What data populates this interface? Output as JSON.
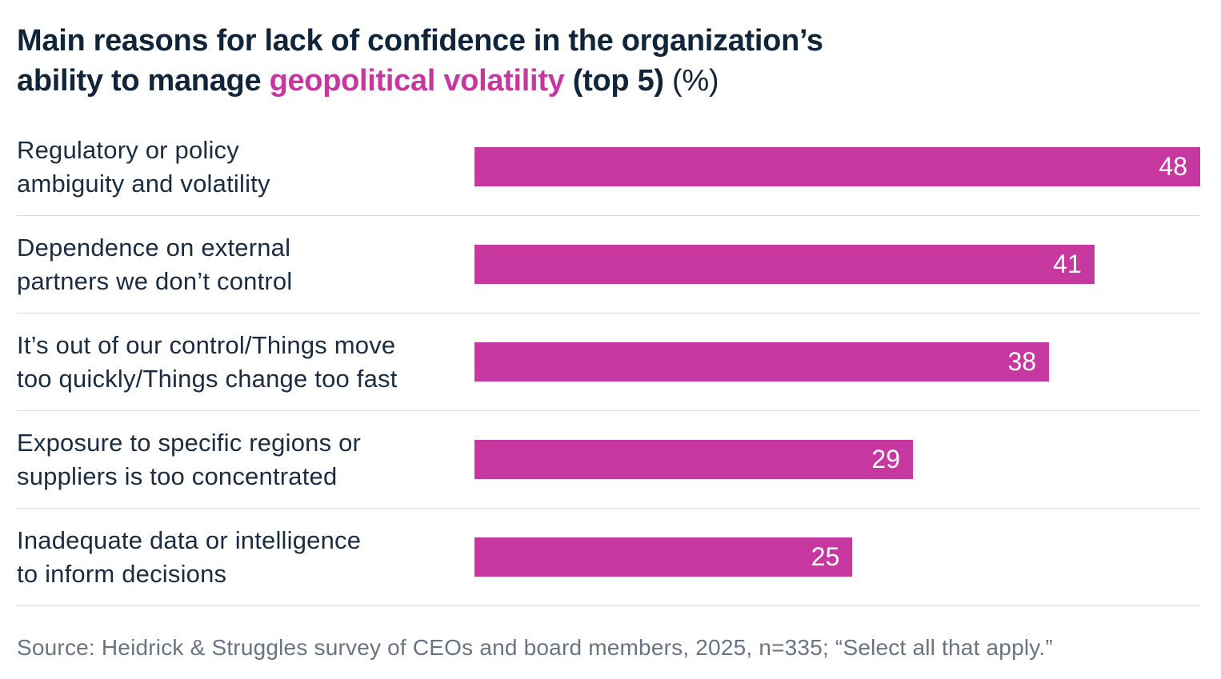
{
  "title": {
    "line1": "Main reasons for lack of confidence in the organization’s",
    "line2_prefix": "ability to manage ",
    "line2_highlight": "geopolitical volatility",
    "line2_bold_suffix": " (top 5)",
    "line2_light_suffix": " (%)"
  },
  "chart_data": {
    "type": "bar",
    "orientation": "horizontal",
    "title": "Main reasons for lack of confidence in the organization’s ability to manage geopolitical volatility (top 5) (%)",
    "categories": [
      "Regulatory or policy\nambiguity and volatility",
      "Dependence on external\npartners we don’t control",
      "It’s out of our control/Things move\ntoo quickly/Things change too fast",
      "Exposure to specific regions or\nsuppliers is too concentrated",
      "Inadequate data or intelligence\nto inform decisions"
    ],
    "values": [
      48,
      41,
      38,
      29,
      25
    ],
    "xlim": [
      0,
      48
    ],
    "value_labels_shown": true,
    "grid": false,
    "legend": false,
    "bar_color": "#c737a0",
    "value_label_color": "#ffffff"
  },
  "colors": {
    "accent_magenta": "#c737a0",
    "title_navy": "#10243a",
    "label_navy": "#1c2c40",
    "divider_gray": "#d9d9d9",
    "source_gray": "#6a7380"
  },
  "source": "Source: Heidrick & Struggles survey of CEOs and board members, 2025, n=335; “Select all that apply.”"
}
